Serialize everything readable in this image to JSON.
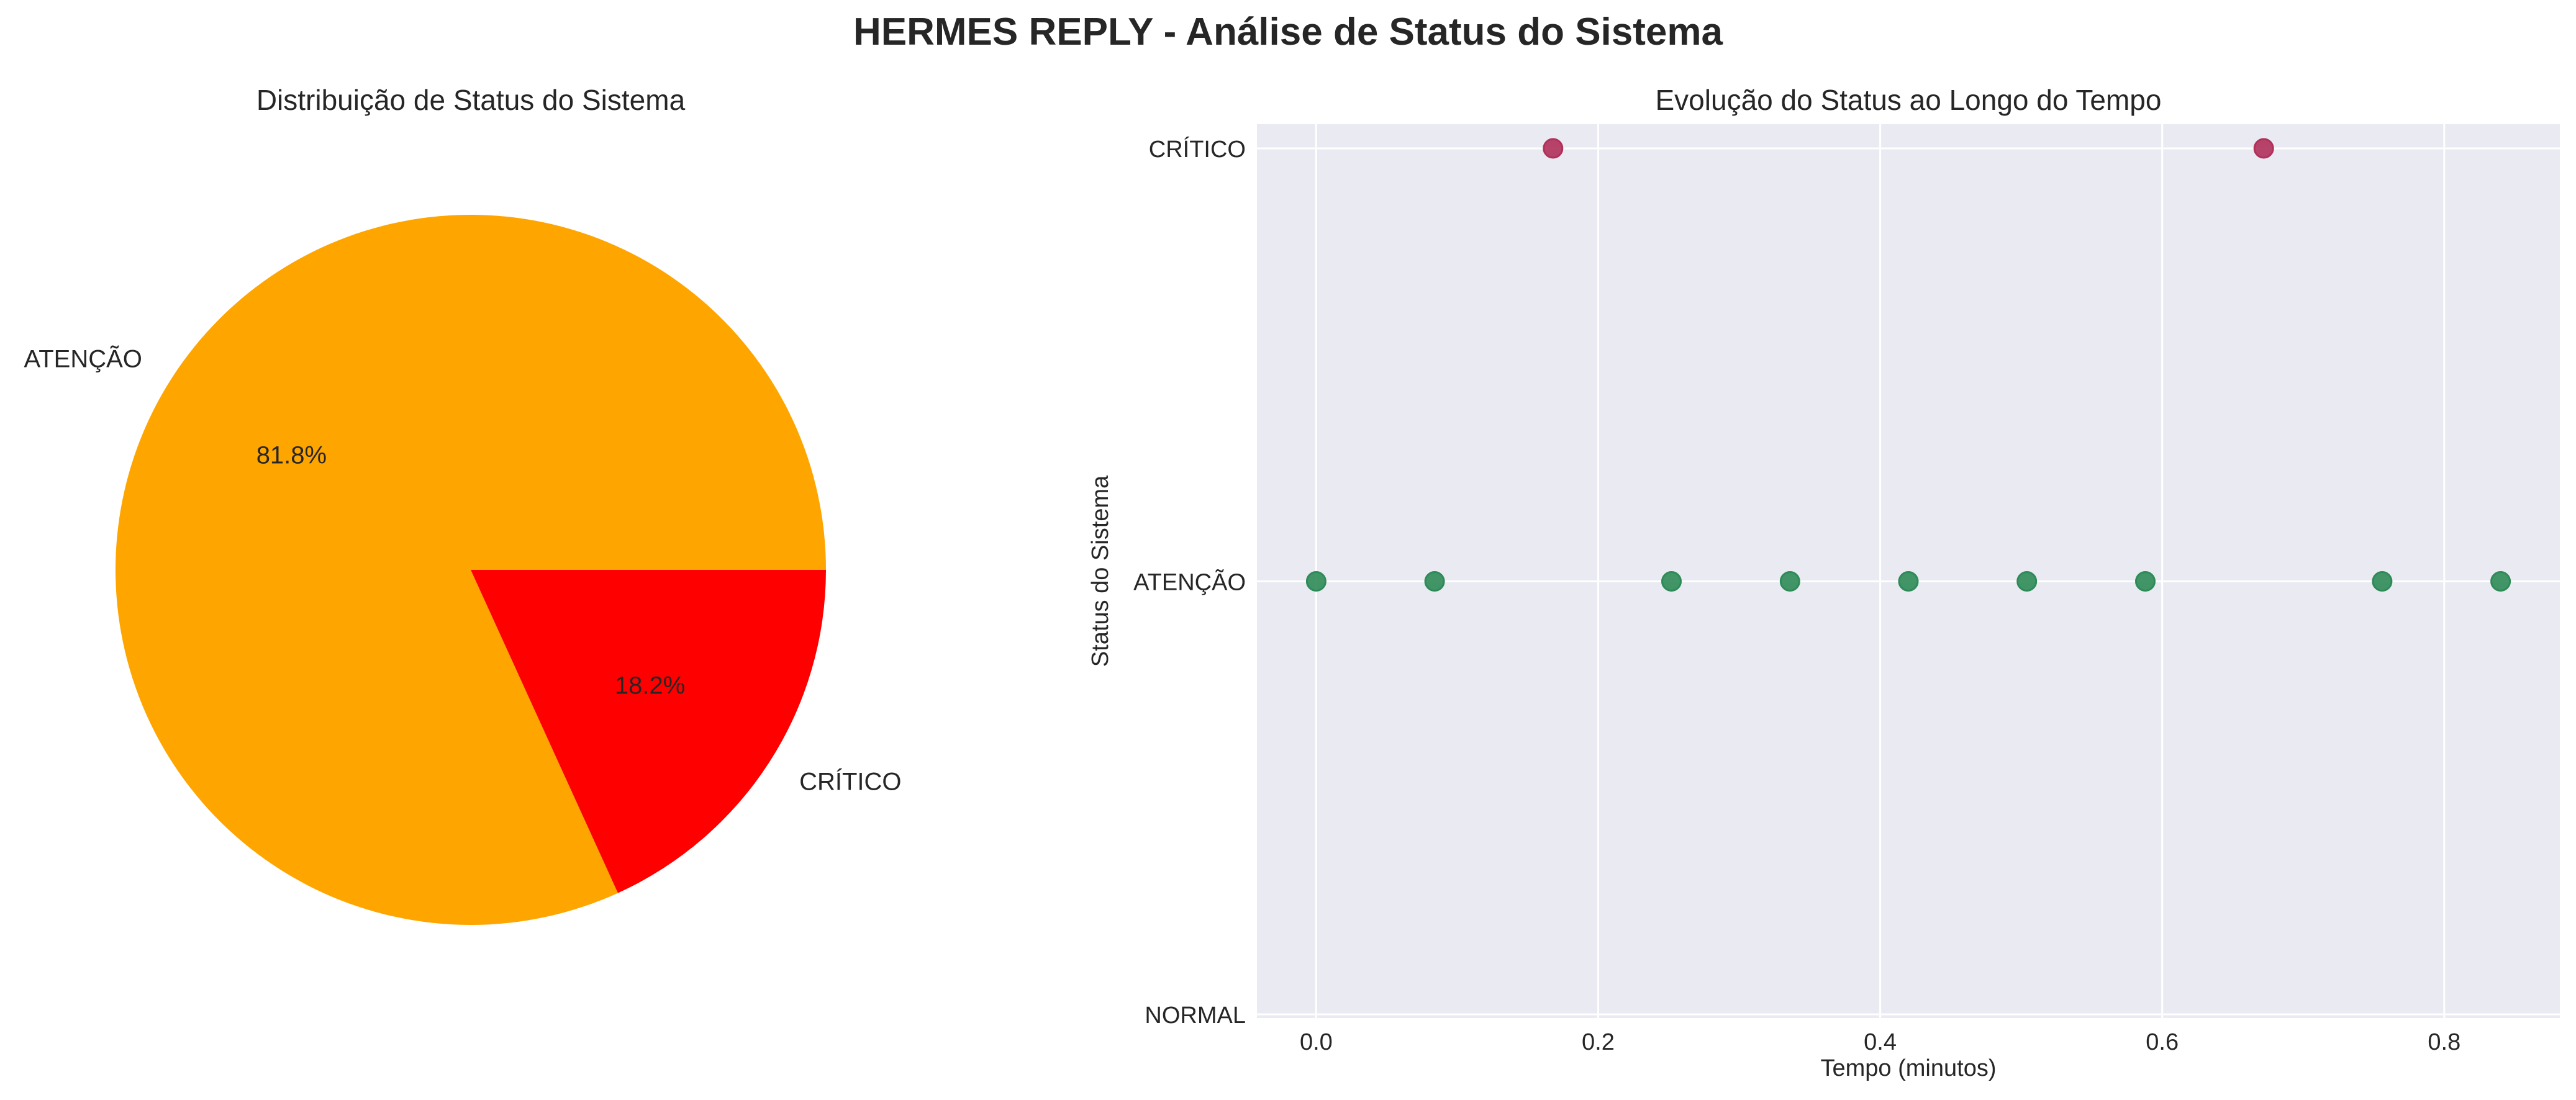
{
  "figure": {
    "suptitle": "HERMES REPLY - Análise de Status do Sistema"
  },
  "colors": {
    "pie_atencao": "#FFA500",
    "pie_critico": "#FF0000",
    "marker_atencao": "#2E8B57",
    "marker_critico": "#B0305A",
    "axes_bg": "#EAEAF2",
    "grid": "#FFFFFF"
  },
  "chart_data": [
    {
      "type": "pie",
      "title": "Distribuição de Status do Sistema",
      "labels": [
        "ATENÇÃO",
        "CRÍTICO"
      ],
      "values": [
        81.8,
        18.2
      ],
      "percent_labels": [
        "81.8%",
        "18.2%"
      ],
      "start_angle": 0,
      "direction": "counterclockwise"
    },
    {
      "type": "scatter",
      "title": "Evolução do Status ao Longo do Tempo",
      "xlabel": "Tempo (minutos)",
      "ylabel": "Status do Sistema",
      "xlim": [
        -0.042,
        0.882
      ],
      "x_ticks": [
        0.0,
        0.2,
        0.4,
        0.6,
        0.8
      ],
      "x_tick_labels": [
        "0.0",
        "0.2",
        "0.4",
        "0.6",
        "0.8"
      ],
      "y_categories": [
        "NORMAL",
        "ATENÇÃO",
        "CRÍTICO"
      ],
      "grid": true,
      "series": [
        {
          "points": [
            {
              "x": 0.0,
              "y": "ATENÇÃO"
            },
            {
              "x": 0.084,
              "y": "ATENÇÃO"
            },
            {
              "x": 0.168,
              "y": "CRÍTICO"
            },
            {
              "x": 0.252,
              "y": "ATENÇÃO"
            },
            {
              "x": 0.336,
              "y": "ATENÇÃO"
            },
            {
              "x": 0.42,
              "y": "ATENÇÃO"
            },
            {
              "x": 0.504,
              "y": "ATENÇÃO"
            },
            {
              "x": 0.588,
              "y": "ATENÇÃO"
            },
            {
              "x": 0.672,
              "y": "CRÍTICO"
            },
            {
              "x": 0.756,
              "y": "ATENÇÃO"
            },
            {
              "x": 0.84,
              "y": "ATENÇÃO"
            }
          ]
        }
      ]
    }
  ]
}
